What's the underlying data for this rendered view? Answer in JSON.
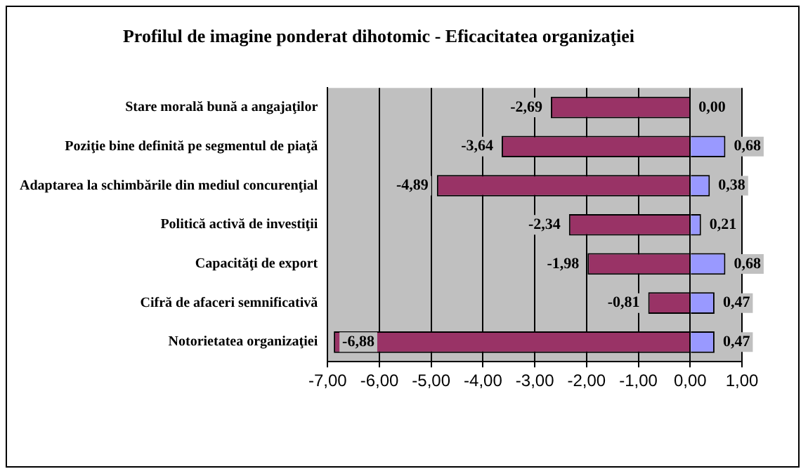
{
  "chart_data": {
    "type": "bar",
    "orientation": "horizontal",
    "stacked": true,
    "title": "Profilul de imagine ponderat dihotomic - Eficacitatea organizaţiei",
    "categories": [
      "Stare morală bună a angajaţilor",
      "Poziţie bine definită pe segmentul de piaţă",
      "Adaptarea la schimbările din mediul concurenţial",
      "Politică activă de investiţii",
      "Capacităţi de export",
      "Cifră de afaceri semnificativă",
      "Notorietatea organizaţiei"
    ],
    "series": [
      {
        "color": "#993366",
        "values": [
          -2.69,
          -3.64,
          -4.89,
          -2.34,
          -1.98,
          -0.81,
          -6.88
        ],
        "value_labels": [
          "-2,69",
          "-3,64",
          "-4,89",
          "-2,34",
          "-1,98",
          "-0,81",
          "-6,88"
        ]
      },
      {
        "color": "#9999ff",
        "values": [
          0.0,
          0.68,
          0.38,
          0.21,
          0.68,
          0.47,
          0.47
        ],
        "value_labels": [
          "0,00",
          "0,68",
          "0,38",
          "0,21",
          "0,68",
          "0,47",
          "0,47"
        ]
      }
    ],
    "xlim": [
      -7,
      1
    ],
    "xticks": [
      {
        "value": -7,
        "label": "-7,00"
      },
      {
        "value": -6,
        "label": "-6,00"
      },
      {
        "value": -5,
        "label": "-5,00"
      },
      {
        "value": -4,
        "label": "-4,00"
      },
      {
        "value": -3,
        "label": "-3,00"
      },
      {
        "value": -2,
        "label": "-2,00"
      },
      {
        "value": -1,
        "label": "-1,00"
      },
      {
        "value": 0,
        "label": "0,00"
      },
      {
        "value": 1,
        "label": "1,00"
      }
    ],
    "grid": "x",
    "legend": false
  }
}
